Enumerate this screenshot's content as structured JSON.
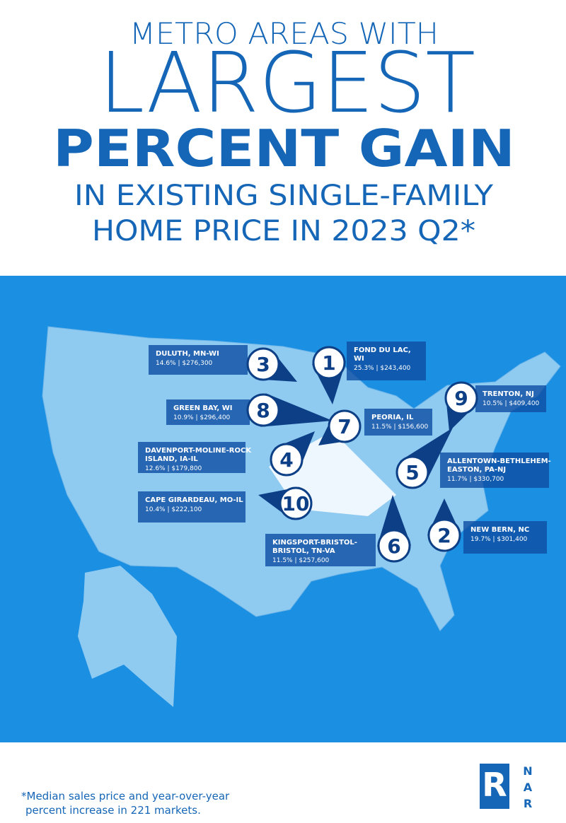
{
  "header": {
    "line1": "METRO AREAS WITH",
    "line2": "LARGEST",
    "line3": "PERCENT GAIN",
    "line4": "IN EXISTING SINGLE-FAMILY",
    "line5": "HOME PRICE IN 2023 Q2*"
  },
  "markers": [
    {
      "rank": "3",
      "name": [
        "DULUTH, MN-WI"
      ],
      "stats": "14.6% | $276,300"
    },
    {
      "rank": "1",
      "name": [
        "FOND DU LAC,",
        "WI"
      ],
      "stats": "25.3% | $243,400"
    },
    {
      "rank": "8",
      "name": [
        "GREEN BAY, WI"
      ],
      "stats": "10.9% | $296,400"
    },
    {
      "rank": "9",
      "name": [
        "TRENTON, NJ"
      ],
      "stats": "10.5% | $409,400"
    },
    {
      "rank": "7",
      "name": [
        "PEORIA, IL"
      ],
      "stats": "11.5% | $156,600"
    },
    {
      "rank": "4",
      "name": [
        "DAVENPORT-MOLINE-ROCK",
        "ISLAND, IA-IL"
      ],
      "stats": "12.6% | $179,800"
    },
    {
      "rank": "5",
      "name": [
        "ALLENTOWN-BETHLEHEM-",
        "EASTON, PA-NJ"
      ],
      "stats": "11.7% | $330,700"
    },
    {
      "rank": "10",
      "name": [
        "CAPE GIRARDEAU, MO-IL"
      ],
      "stats": "10.4% | $222,100"
    },
    {
      "rank": "6",
      "name": [
        "KINGSPORT-BRISTOL-",
        "BRISTOL, TN-VA"
      ],
      "stats": "11.5% | $257,600"
    },
    {
      "rank": "2",
      "name": [
        "NEW BERN, NC"
      ],
      "stats": "19.7% | $301,400"
    }
  ],
  "footnote": [
    "*Median sales price and year-over-year",
    "percent increase in 221 markets."
  ],
  "logo": {
    "mark": "R",
    "letters": [
      "N",
      "A",
      "R"
    ]
  }
}
